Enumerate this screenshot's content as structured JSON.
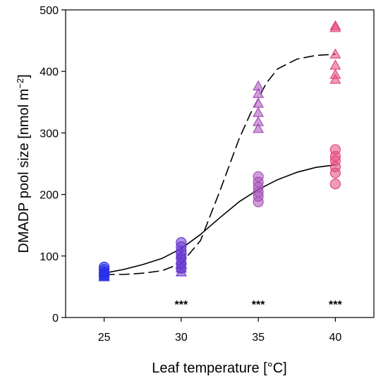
{
  "chart_data": {
    "type": "scatter",
    "title": "",
    "xlabel": "Leaf temperature [°C]",
    "ylabel": "DMADP pool size [nmol m",
    "ylabel_sup": "−2",
    "ylabel_end": "]",
    "xlim": [
      22.5,
      42.5
    ],
    "ylim": [
      0,
      500
    ],
    "x_ticks": [
      25,
      30,
      35,
      40
    ],
    "y_ticks": [
      0,
      100,
      200,
      300,
      400,
      500
    ],
    "grid": false,
    "legend": "none",
    "series": [
      {
        "marker": "circle",
        "points": [
          {
            "x": 25,
            "y": 82
          },
          {
            "x": 25,
            "y": 78
          },
          {
            "x": 25,
            "y": 74
          },
          {
            "x": 25,
            "y": 71
          },
          {
            "x": 25,
            "y": 68
          },
          {
            "x": 30,
            "y": 122
          },
          {
            "x": 30,
            "y": 115
          },
          {
            "x": 30,
            "y": 108
          },
          {
            "x": 30,
            "y": 103
          },
          {
            "x": 30,
            "y": 97
          },
          {
            "x": 30,
            "y": 88
          },
          {
            "x": 30,
            "y": 80
          },
          {
            "x": 35,
            "y": 229
          },
          {
            "x": 35,
            "y": 220
          },
          {
            "x": 35,
            "y": 212
          },
          {
            "x": 35,
            "y": 204
          },
          {
            "x": 35,
            "y": 197
          },
          {
            "x": 35,
            "y": 188
          },
          {
            "x": 40,
            "y": 273
          },
          {
            "x": 40,
            "y": 262
          },
          {
            "x": 40,
            "y": 255
          },
          {
            "x": 40,
            "y": 245
          },
          {
            "x": 40,
            "y": 235
          },
          {
            "x": 40,
            "y": 217
          }
        ]
      },
      {
        "marker": "triangle",
        "points": [
          {
            "x": 25,
            "y": 74
          },
          {
            "x": 25,
            "y": 71
          },
          {
            "x": 25,
            "y": 68
          },
          {
            "x": 25,
            "y": 66
          },
          {
            "x": 30,
            "y": 102
          },
          {
            "x": 30,
            "y": 93
          },
          {
            "x": 30,
            "y": 86
          },
          {
            "x": 30,
            "y": 80
          },
          {
            "x": 30,
            "y": 74
          },
          {
            "x": 35,
            "y": 376
          },
          {
            "x": 35,
            "y": 364
          },
          {
            "x": 35,
            "y": 348
          },
          {
            "x": 35,
            "y": 333
          },
          {
            "x": 35,
            "y": 318
          },
          {
            "x": 35,
            "y": 307
          },
          {
            "x": 40,
            "y": 474
          },
          {
            "x": 40,
            "y": 471
          },
          {
            "x": 40,
            "y": 428
          },
          {
            "x": 40,
            "y": 410
          },
          {
            "x": 40,
            "y": 395
          },
          {
            "x": 40,
            "y": 387
          }
        ]
      }
    ],
    "fits": [
      {
        "style": "solid",
        "x": [
          25,
          26.25,
          27.5,
          28.75,
          30,
          31.25,
          32.5,
          33.75,
          35,
          36.25,
          37.5,
          38.75,
          40
        ],
        "y": [
          72,
          78,
          86,
          96,
          112,
          135,
          162,
          188,
          208,
          224,
          236,
          244,
          248
        ]
      },
      {
        "style": "dashed",
        "x": [
          25,
          26.25,
          27.5,
          28.75,
          30,
          31.25,
          32.5,
          33.75,
          34.5,
          35.5,
          36.25,
          37.5,
          38.75,
          40
        ],
        "y": [
          70,
          70,
          72,
          76,
          88,
          125,
          205,
          290,
          332,
          380,
          404,
          420,
          426,
          428
        ]
      }
    ],
    "colors": {
      "25": "#2a2fe8",
      "30": "#6a3ad0",
      "35": "#a650b8",
      "40": "#e24a78"
    },
    "annotations": [
      {
        "x": 30,
        "y": 22,
        "text": "***"
      },
      {
        "x": 35,
        "y": 22,
        "text": "***"
      },
      {
        "x": 40,
        "y": 22,
        "text": "***"
      }
    ]
  }
}
